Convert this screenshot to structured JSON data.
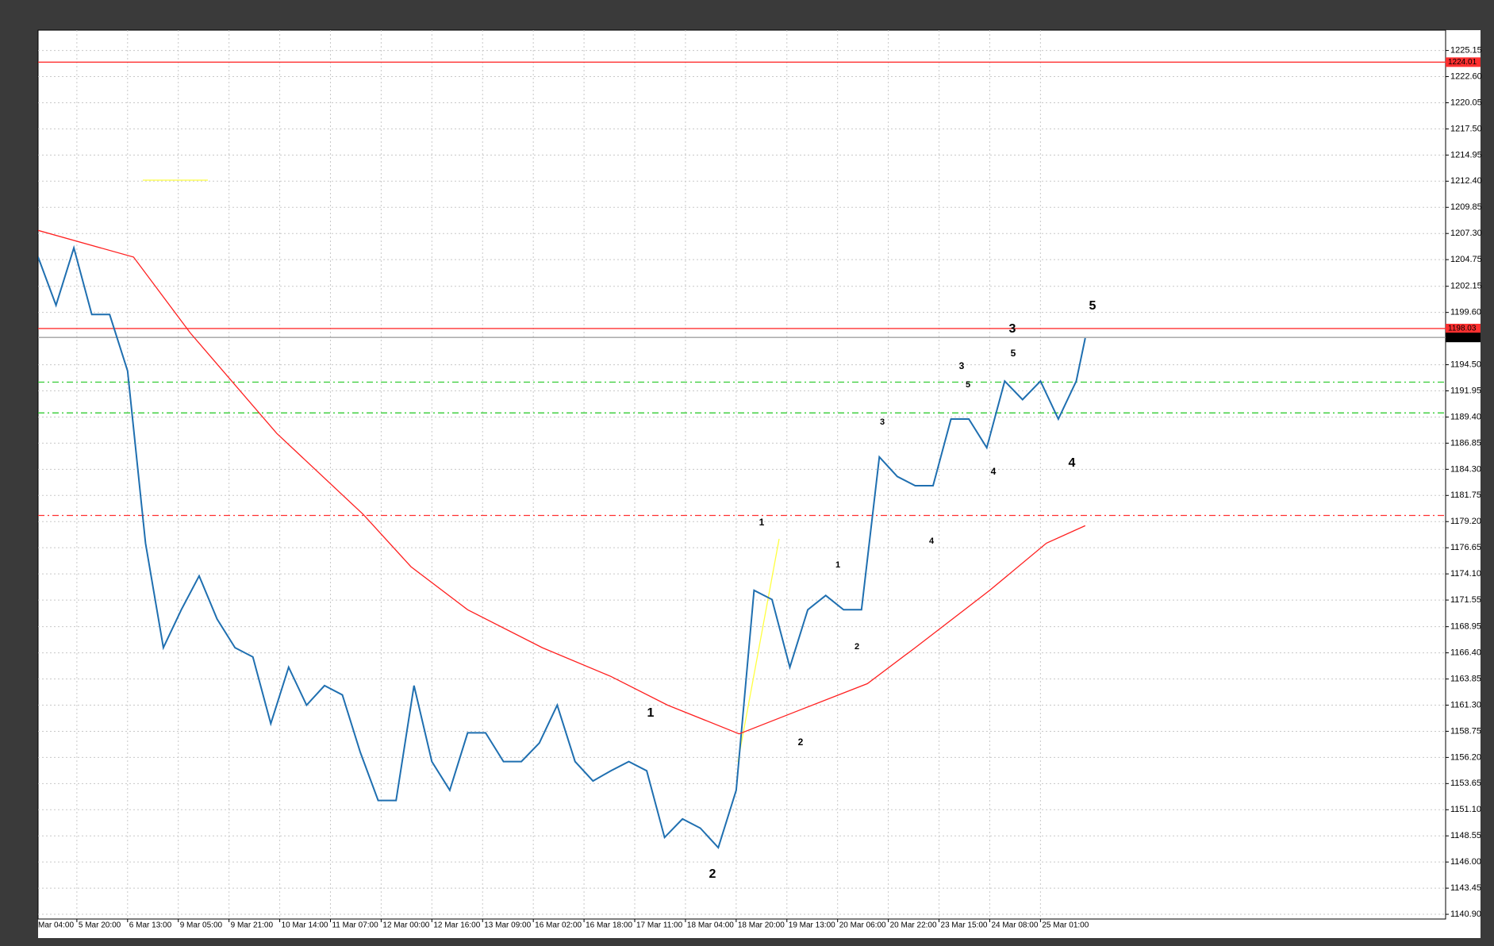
{
  "chart_data": {
    "type": "line",
    "ylim": [
      1140.44,
      1227.13
    ],
    "xlim": [
      0,
      471.8
    ],
    "grid": true,
    "yticks": [
      1225.15,
      {
        "value": 1222.6,
        "label": "1222.60"
      },
      1220.05,
      {
        "value": 1217.5,
        "label": "1217.50"
      },
      1214.95,
      {
        "value": 1212.4,
        "label": "1212.40"
      },
      1209.85,
      {
        "value": 1207.3,
        "label": "1207.30"
      },
      1204.75,
      1202.15,
      {
        "value": 1199.6,
        "label": "1199.60"
      },
      {
        "value": 1194.5,
        "label": "1194.50"
      },
      1191.95,
      {
        "value": 1189.4,
        "label": "1189.40"
      },
      1186.85,
      {
        "value": 1184.3,
        "label": "1184.30"
      },
      1181.75,
      {
        "value": 1179.2,
        "label": "1179.20"
      },
      1176.65,
      {
        "value": 1174.1,
        "label": "1174.10"
      },
      1171.55,
      1168.95,
      {
        "value": 1166.4,
        "label": "1166.40"
      },
      1163.85,
      {
        "value": 1161.3,
        "label": "1161.30"
      },
      1158.75,
      {
        "value": 1156.2,
        "label": "1156.20"
      },
      1153.65,
      {
        "value": 1151.1,
        "label": "1151.10"
      },
      1148.55,
      {
        "value": 1146,
        "label": "1146.00"
      },
      1143.45,
      {
        "value": 1140.9,
        "label": "1140.90"
      }
    ],
    "xticks": [
      {
        "value": -4,
        "label": "Mar 04:00"
      },
      {
        "value": 13,
        "label": "5 Mar 20:00"
      },
      {
        "value": 30,
        "label": "6 Mar 13:00"
      },
      {
        "value": 47,
        "label": "9 Mar 05:00"
      },
      {
        "value": 64,
        "label": "9 Mar 21:00"
      },
      {
        "value": 81,
        "label": "10 Mar 14:00"
      },
      {
        "value": 98,
        "label": "11 Mar 07:00"
      },
      {
        "value": 115,
        "label": "12 Mar 00:00"
      },
      {
        "value": 132,
        "label": "12 Mar 16:00"
      },
      {
        "value": 149,
        "label": "13 Mar 09:00"
      },
      {
        "value": 166,
        "label": "16 Mar 02:00"
      },
      {
        "value": 183,
        "label": "16 Mar 18:00"
      },
      {
        "value": 200,
        "label": "17 Mar 11:00"
      },
      {
        "value": 217,
        "label": "18 Mar 04:00"
      },
      {
        "value": 234,
        "label": "18 Mar 20:00"
      },
      {
        "value": 251,
        "label": "19 Mar 13:00"
      },
      {
        "value": 268,
        "label": "20 Mar 06:00"
      },
      {
        "value": 285,
        "label": "20 Mar 22:00"
      },
      {
        "value": 302,
        "label": "23 Mar 15:00"
      },
      {
        "value": 319,
        "label": "24 Mar 08:00"
      },
      {
        "value": 336,
        "label": "25 Mar 01:00"
      }
    ],
    "series": [
      {
        "color": "#1f6fb0",
        "x": [
          0,
          6,
          12,
          18,
          24,
          30,
          36,
          42,
          48,
          54,
          60,
          66,
          72,
          78,
          84,
          90,
          96,
          102,
          108,
          114,
          120,
          126,
          132,
          138,
          144,
          150,
          156,
          162,
          168,
          174,
          180,
          186,
          192,
          198,
          204,
          210,
          216,
          222,
          228,
          234,
          240,
          246,
          252,
          258,
          264,
          270,
          276,
          282,
          288,
          294,
          300,
          306,
          312,
          318,
          324,
          330,
          336,
          342,
          348,
          351
        ],
        "values": [
          1205.0,
          1200.3,
          1205.9,
          1199.4,
          1199.4,
          1193.9,
          1177.1,
          1166.9,
          1170.6,
          1173.9,
          1169.7,
          1166.9,
          1166.0,
          1159.5,
          1165.0,
          1161.3,
          1163.2,
          1162.3,
          1156.7,
          1152.0,
          1152.0,
          1163.2,
          1155.8,
          1153.0,
          1158.6,
          1158.6,
          1155.8,
          1155.8,
          1157.6,
          1161.3,
          1155.8,
          1153.9,
          1154.9,
          1155.8,
          1154.9,
          1148.4,
          1150.2,
          1149.3,
          1147.4,
          1153.0,
          1172.5,
          1171.6,
          1165.0,
          1170.6,
          1172.0,
          1170.6,
          1170.6,
          1185.5,
          1183.6,
          1182.7,
          1182.7,
          1189.2,
          1189.2,
          1186.4,
          1192.9,
          1191.1,
          1192.9,
          1189.2,
          1192.9,
          1197.1
        ]
      },
      {
        "color": "#ff2020",
        "x": [
          0,
          32,
          51,
          80,
          109,
          125,
          144,
          169,
          192,
          211,
          235,
          256,
          278,
          294,
          319,
          338,
          351
        ],
        "values": [
          1207.6,
          1205.0,
          1197.6,
          1187.8,
          1179.9,
          1174.8,
          1170.6,
          1166.9,
          1164.1,
          1161.3,
          1158.5,
          1160.9,
          1163.4,
          1166.9,
          1172.5,
          1177.1,
          1178.8
        ]
      }
    ],
    "levels": [
      {
        "value": 1224.01,
        "color": "#ff3030",
        "style": "solid",
        "marker": true
      },
      {
        "value": 1198.03,
        "color": "#ff3030",
        "style": "solid",
        "marker": true
      },
      {
        "value": 1197.16,
        "color": "#a0a0a0",
        "style": "solid",
        "marker": true,
        "marker_color": "#000000"
      },
      {
        "value": 1192.8,
        "color": "#33cc33",
        "style": "dashdot",
        "marker": false
      },
      {
        "value": 1189.8,
        "color": "#33cc33",
        "style": "dashdot",
        "marker": false
      },
      {
        "value": 1179.8,
        "color": "#ff3030",
        "style": "dashdot",
        "marker": false
      }
    ],
    "wave_labels": [
      {
        "text": "1",
        "color": "#ff2020"
      },
      {
        "text": "2",
        "color": "#ff2020"
      },
      {
        "text": "3",
        "color": "#ff2020"
      },
      {
        "text": "4",
        "color": "#ff2020"
      },
      {
        "text": "5",
        "color": "#ff2020"
      },
      {
        "text": "1",
        "color": "#000000"
      },
      {
        "text": "2",
        "color": "#000000"
      },
      {
        "text": "3",
        "color": "#000000"
      },
      {
        "text": "4",
        "color": "#000000"
      },
      {
        "text": "5",
        "color": "#000000"
      },
      {
        "text": "1",
        "color": "#e040e0"
      },
      {
        "text": "2",
        "color": "#e040e0"
      },
      {
        "text": "3",
        "color": "#e040e0"
      },
      {
        "text": "4",
        "color": "#e040e0"
      },
      {
        "text": "5",
        "color": "#e040e0"
      }
    ]
  }
}
